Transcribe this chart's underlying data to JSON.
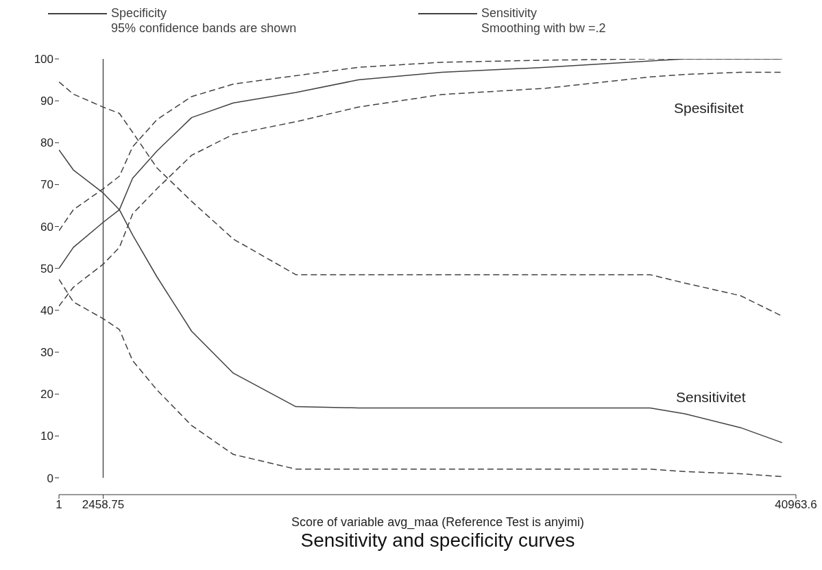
{
  "chart_data": {
    "type": "line",
    "title": "Sensitivity and specificity curves",
    "xlabel": "Score of variable avg_maa (Reference Test is anyimi)",
    "x": [
      1,
      800,
      2459,
      3360,
      4093,
      5445,
      7375,
      9692,
      13167,
      16642,
      21275,
      27066,
      32858,
      34788,
      37877,
      40194
    ],
    "series": [
      {
        "name": "Specificity",
        "color": "#404040",
        "line_style": "solid",
        "values": [
          50,
          55,
          61,
          64,
          71.5,
          78,
          86,
          89.5,
          92,
          95,
          96.8,
          98,
          99.5,
          100,
          100,
          100
        ]
      },
      {
        "name": "Sensitivity",
        "color": "#404040",
        "line_style": "solid",
        "values": [
          78.3,
          73.5,
          68,
          64,
          58,
          48,
          35,
          25,
          17,
          16.7,
          16.7,
          16.7,
          16.7,
          15.3,
          12,
          8.4
        ]
      },
      {
        "color": "#404040",
        "line_style": "dashed",
        "values": [
          41,
          45.5,
          51,
          55,
          63,
          69,
          77,
          82,
          85,
          88.5,
          91.5,
          93,
          95.7,
          96.3,
          96.8,
          96.8
        ]
      },
      {
        "color": "#404040",
        "line_style": "dashed",
        "values": [
          59,
          64,
          69,
          72,
          79,
          85.5,
          91,
          94,
          96,
          98,
          99.2,
          99.7,
          100,
          100,
          100,
          100
        ]
      },
      {
        "color": "#404040",
        "line_style": "dashed",
        "values": [
          47.4,
          42,
          38,
          35.4,
          28,
          21,
          12.5,
          5.6,
          2.1,
          2.1,
          2.1,
          2.1,
          2.1,
          1.5,
          1,
          0.3
        ]
      },
      {
        "color": "#404040",
        "line_style": "dashed",
        "values": [
          94.5,
          91.6,
          88.5,
          87,
          82.5,
          74,
          66,
          57,
          48.5,
          48.5,
          48.5,
          48.5,
          48.5,
          46.5,
          43.5,
          38.6
        ]
      }
    ],
    "annotations": [
      "95% confidence bands are shown",
      "Smoothing with bw =.2",
      "Spesifisitet",
      "Sensitivitet"
    ],
    "ref_lines": [
      {
        "axis": "x",
        "value": 2458.75,
        "color": "#505050"
      }
    ],
    "xlim": [
      1,
      40963.6
    ],
    "xticks": [
      1,
      2458.75,
      40963.6
    ],
    "ylim": [
      -4,
      100
    ],
    "yticks": [
      0,
      10,
      20,
      30,
      40,
      50,
      60,
      70,
      80,
      90,
      100
    ],
    "grid": false,
    "legend": "top"
  }
}
